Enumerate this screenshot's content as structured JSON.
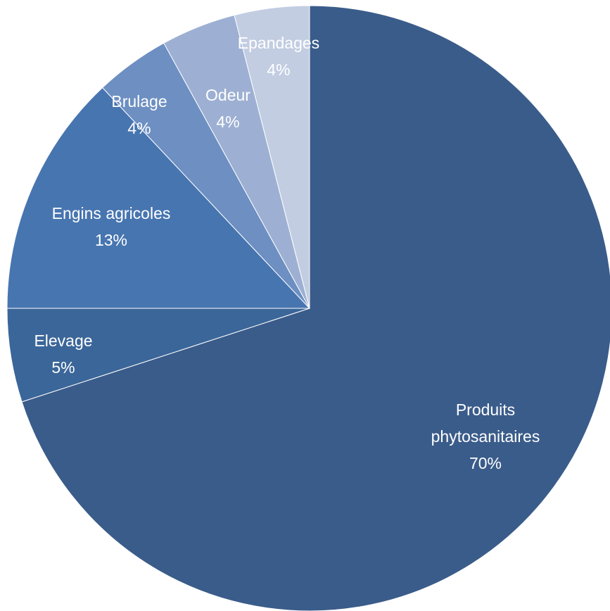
{
  "chart_data": {
    "type": "pie",
    "title": "",
    "slices": [
      {
        "label_lines": [
          "Produits",
          "phytosanitaires"
        ],
        "value": 70,
        "value_label": "70%",
        "color": "#3a5c8a"
      },
      {
        "label_lines": [
          "Elevage"
        ],
        "value": 5,
        "value_label": "5%",
        "color": "#3b6699"
      },
      {
        "label_lines": [
          "Engins agricoles"
        ],
        "value": 13,
        "value_label": "13%",
        "color": "#4775b0"
      },
      {
        "label_lines": [
          "Brulage"
        ],
        "value": 4,
        "value_label": "4%",
        "color": "#6d8fc2"
      },
      {
        "label_lines": [
          "Odeur"
        ],
        "value": 4,
        "value_label": "4%",
        "color": "#9db0d3"
      },
      {
        "label_lines": [
          "Epandages"
        ],
        "value": 4,
        "value_label": "4%",
        "color": "#c2cde2"
      }
    ]
  }
}
